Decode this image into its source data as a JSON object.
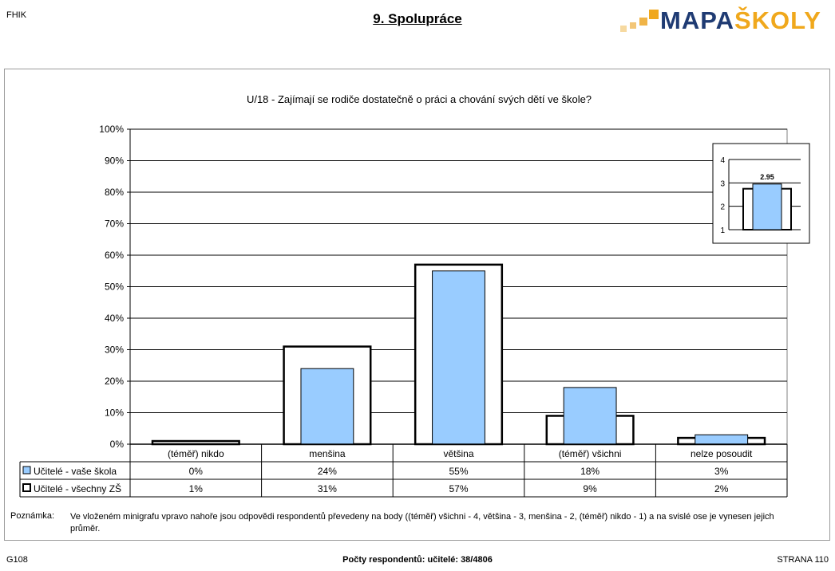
{
  "header": {
    "left_code": "FHIK",
    "title": "9. Spolupráce",
    "logo": {
      "part1": "MAPA",
      "part2": "ŠKOLY",
      "color1": "#1f3b73",
      "color2": "#f0a81c"
    }
  },
  "chart_data": [
    {
      "type": "bar",
      "title": "U/18 - Zajímají se rodiče dostatečně o práci a chování svých dětí ve škole?",
      "categories": [
        "(téměř) nikdo",
        "menšina",
        "většina",
        "(téměř) všichni",
        "nelze posoudit"
      ],
      "series": [
        {
          "name": "Učitelé - vaše škola",
          "values": [
            0,
            24,
            55,
            18,
            3
          ],
          "labels": [
            "0%",
            "24%",
            "55%",
            "18%",
            "3%"
          ],
          "color": "#99ccff",
          "style": "filled"
        },
        {
          "name": "Učitelé - všechny ZŠ",
          "values": [
            1,
            31,
            57,
            9,
            2
          ],
          "labels": [
            "1%",
            "31%",
            "57%",
            "9%",
            "2%"
          ],
          "color": "#ffffff",
          "style": "outline"
        }
      ],
      "ylim": [
        0,
        100
      ],
      "yticks": [
        "0%",
        "10%",
        "20%",
        "30%",
        "40%",
        "50%",
        "60%",
        "70%",
        "80%",
        "90%",
        "100%"
      ],
      "grid": true,
      "legend": "data-table"
    },
    {
      "type": "bar",
      "title": "",
      "series": [
        {
          "name": "Učitelé - vaše škola",
          "values": [
            2.95
          ],
          "labels": [
            "2.95"
          ],
          "color": "#99ccff"
        },
        {
          "name": "Učitelé - všechny ZŠ",
          "values": [
            2.75
          ],
          "color": "#ffffff"
        }
      ],
      "ylim": [
        1,
        4
      ],
      "yticks": [
        "1",
        "2",
        "3",
        "4"
      ],
      "grid": true
    }
  ],
  "note": {
    "label": "Poznámka:",
    "text": "Ve vloženém minigrafu vpravo nahoře jsou odpovědi respondentů převedeny na body ((téměř) všichni - 4, většina - 3, menšina - 2, (téměř) nikdo - 1) a na svislé ose je vynesen jejich průměr."
  },
  "footer": {
    "left": "G108",
    "center": "Počty respondentů:    učitelé: 38/4806",
    "right": "STRANA 110"
  }
}
